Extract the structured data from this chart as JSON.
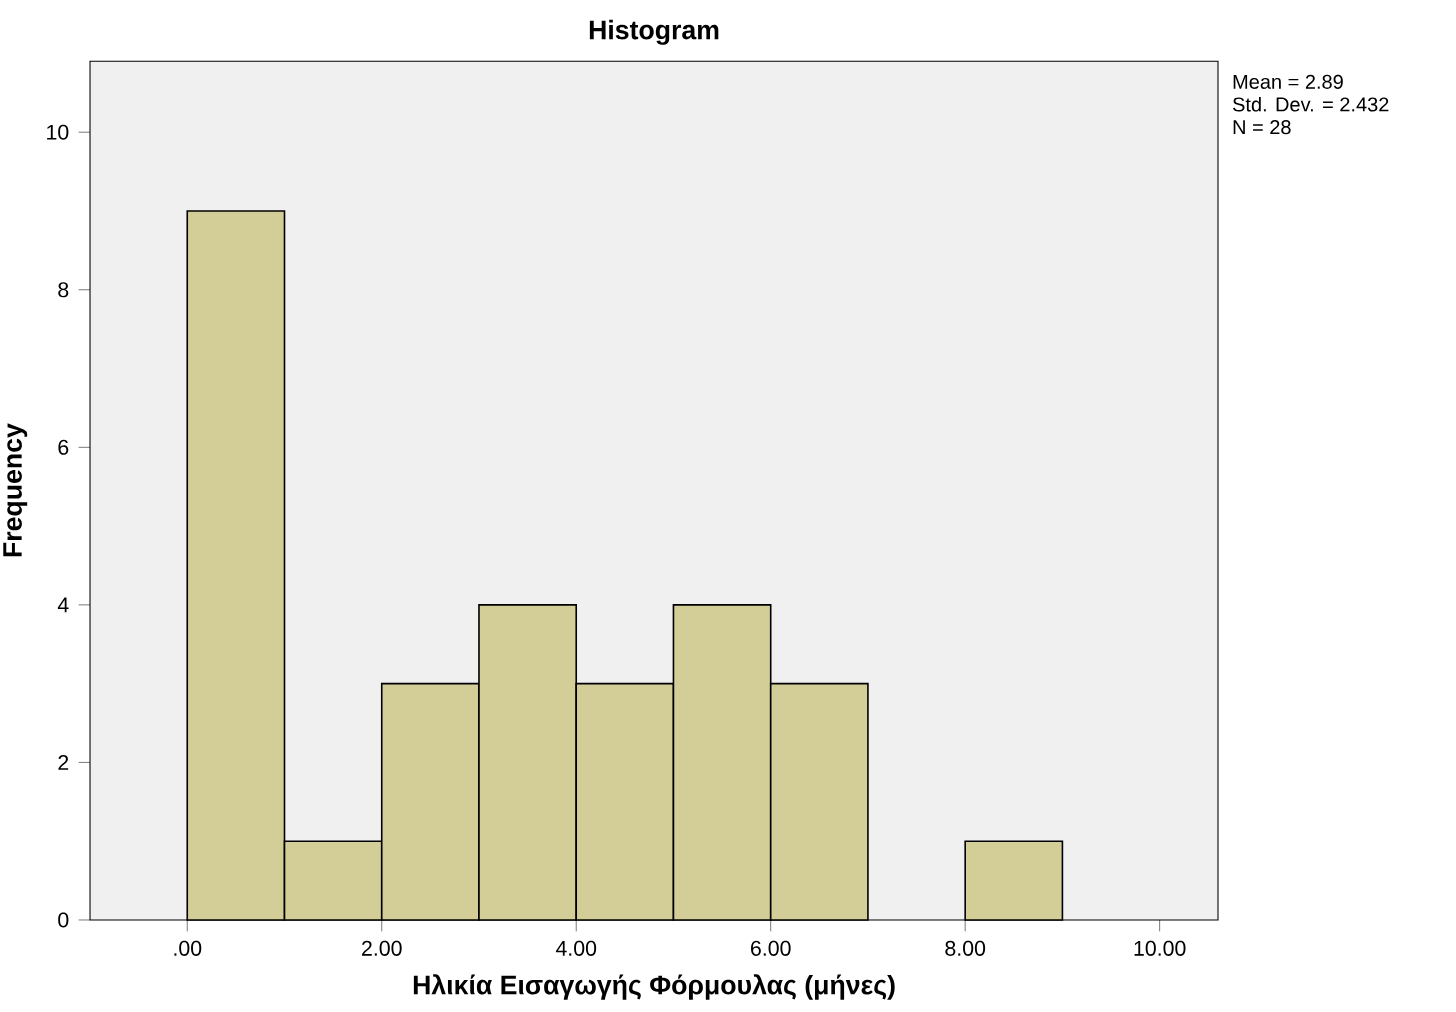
{
  "chart_data": {
    "type": "histogram",
    "title": "Histogram",
    "xlabel": "Ηλικία Εισαγωγής Φόρμουλας (μήνες)",
    "ylabel": "Frequency",
    "bins": [
      0,
      1,
      2,
      3,
      4,
      5,
      6,
      7,
      8,
      9,
      10
    ],
    "values": [
      9,
      1,
      3,
      4,
      3,
      4,
      3,
      0,
      1,
      0
    ],
    "color": "#d3ce97",
    "xlim": [
      -1,
      10.6
    ],
    "ylim": [
      0,
      10.9
    ],
    "xticks": [
      {
        "value": 0,
        "label": ".00"
      },
      {
        "value": 2,
        "label": "2.00"
      },
      {
        "value": 4,
        "label": "4.00"
      },
      {
        "value": 6,
        "label": "6.00"
      },
      {
        "value": 8,
        "label": "8.00"
      },
      {
        "value": 10,
        "label": "10.00"
      }
    ],
    "yticks": [
      0,
      2,
      4,
      6,
      8,
      10
    ],
    "grid": false,
    "annotations": [
      "Mean = 2.89",
      "Std. Dev. = 2.432",
      "N = 28"
    ]
  }
}
